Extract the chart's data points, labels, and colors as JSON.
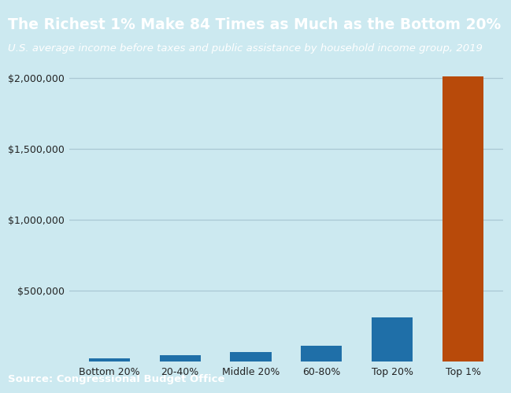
{
  "title": "The Richest 1% Make 84 Times as Much as the Bottom 20%",
  "subtitle": "U.S. average income before taxes and public assistance by household income group, 2019",
  "source": "Source: Congressional Budget Office",
  "categories": [
    "Bottom 20%",
    "20-40%",
    "Middle 20%",
    "60-80%",
    "Top 20%",
    "Top 1%"
  ],
  "values": [
    24000,
    43000,
    68000,
    112000,
    310000,
    2010000
  ],
  "bar_colors": [
    "#1f6fa8",
    "#1f6fa8",
    "#1f6fa8",
    "#1f6fa8",
    "#1f6fa8",
    "#b84a0a"
  ],
  "ylim": [
    0,
    2100000
  ],
  "yticks": [
    500000,
    1000000,
    1500000,
    2000000
  ],
  "plot_bg": "#cce9f0",
  "fig_bg": "#cce9f0",
  "header_bg": "#050505",
  "header_text": "#ffffff",
  "footer_bg": "#050505",
  "footer_text": "#ffffff",
  "grid_color": "#aac8d4",
  "title_fontsize": 13.5,
  "subtitle_fontsize": 9.5,
  "source_fontsize": 9.5,
  "tick_fontsize": 9.0
}
